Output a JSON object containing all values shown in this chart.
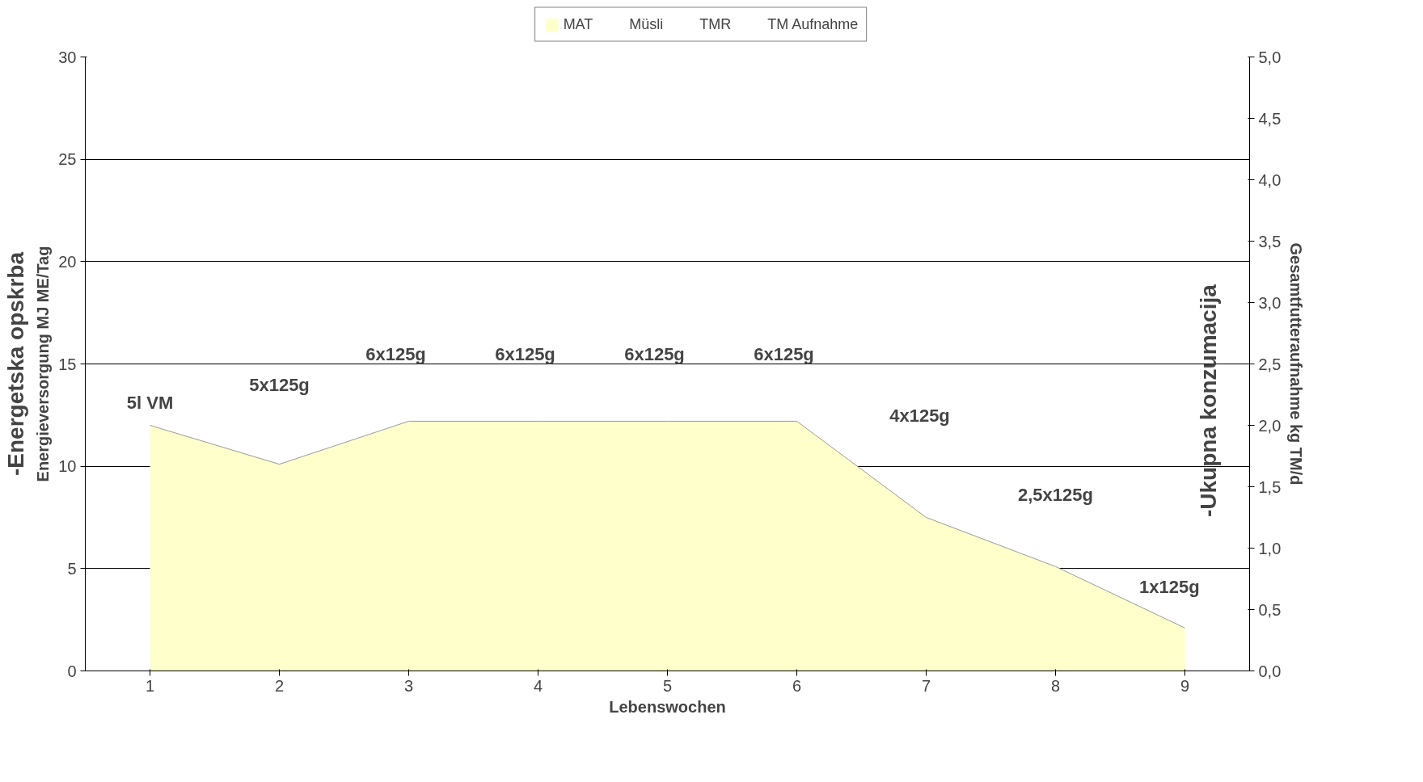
{
  "chart_data": {
    "type": "area",
    "xlabel": "Lebenswochen",
    "ylabel": "Energieversorgung MJ ME/Tag",
    "y2label": "Gesamtfutteraufnahme kg TM/d",
    "x": [
      1,
      2,
      3,
      4,
      5,
      6,
      7,
      8,
      9
    ],
    "series": [
      {
        "name": "MAT",
        "color": "#ffffcc",
        "values": [
          12.0,
          10.1,
          12.2,
          12.2,
          12.2,
          12.2,
          7.5,
          5.1,
          2.1
        ]
      },
      {
        "name": "Müsli",
        "values": [
          null,
          null,
          null,
          null,
          null,
          null,
          null,
          null,
          null
        ]
      },
      {
        "name": "TMR",
        "values": [
          null,
          null,
          null,
          null,
          null,
          null,
          null,
          null,
          null
        ]
      },
      {
        "name": "TM Aufnahme",
        "values": [
          null,
          null,
          null,
          null,
          null,
          null,
          null,
          null,
          null
        ]
      }
    ],
    "xlim": [
      0.5,
      9.5
    ],
    "xticks": [
      1,
      2,
      3,
      4,
      5,
      6,
      7,
      8,
      9
    ],
    "ylim": [
      0,
      30
    ],
    "yticks": [
      0,
      5,
      10,
      15,
      20,
      25,
      30
    ],
    "y2lim": [
      0,
      5
    ],
    "y2ticks": [
      {
        "value": 0,
        "label": "0,0"
      },
      {
        "value": 0.5,
        "label": "0,5"
      },
      {
        "value": 1,
        "label": "1,0"
      },
      {
        "value": 1.5,
        "label": "1,5"
      },
      {
        "value": 2,
        "label": "2,0"
      },
      {
        "value": 2.5,
        "label": "2,5"
      },
      {
        "value": 3,
        "label": "3,0"
      },
      {
        "value": 3.5,
        "label": "3,5"
      },
      {
        "value": 4,
        "label": "4,0"
      },
      {
        "value": 4.5,
        "label": "4,5"
      },
      {
        "value": 5,
        "label": "5,0"
      }
    ],
    "grid": "y",
    "legend": "top",
    "annotations": [
      "5l VM",
      "5x125g",
      "6x125g",
      "6x125g",
      "6x125g",
      "6x125g",
      "4x125g",
      "2,5x125g",
      "1x125g",
      "-Energetska opskrba",
      "-Ukupna konzumacija"
    ]
  }
}
